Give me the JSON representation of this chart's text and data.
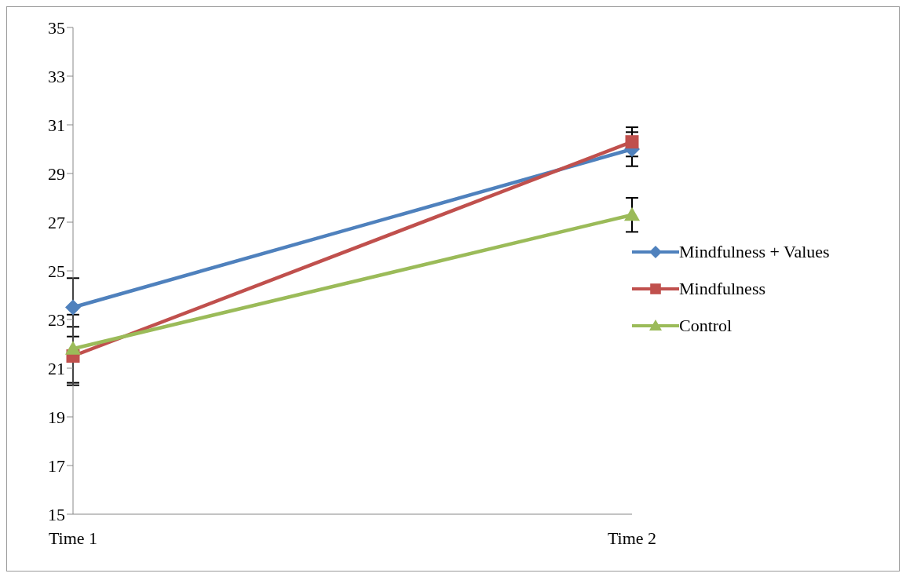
{
  "chart_data": {
    "type": "line",
    "categories": [
      "Time 1",
      "Time 2"
    ],
    "series": [
      {
        "name": "Mindfulness + Values",
        "color": "#4f81bd",
        "marker": "diamond",
        "values": [
          23.5,
          30.0
        ],
        "errors": [
          1.2,
          0.7
        ]
      },
      {
        "name": "Mindfulness",
        "color": "#c0504d",
        "marker": "square",
        "values": [
          21.5,
          30.3
        ],
        "errors": [
          1.2,
          0.6
        ]
      },
      {
        "name": "Control",
        "color": "#9bbb59",
        "marker": "triangle",
        "values": [
          21.8,
          27.3
        ],
        "errors": [
          1.4,
          0.7
        ]
      }
    ],
    "ylim": [
      15,
      35
    ],
    "yticks": [
      15,
      17,
      19,
      21,
      23,
      25,
      27,
      29,
      31,
      33,
      35
    ],
    "grid": false,
    "legend": "right"
  }
}
